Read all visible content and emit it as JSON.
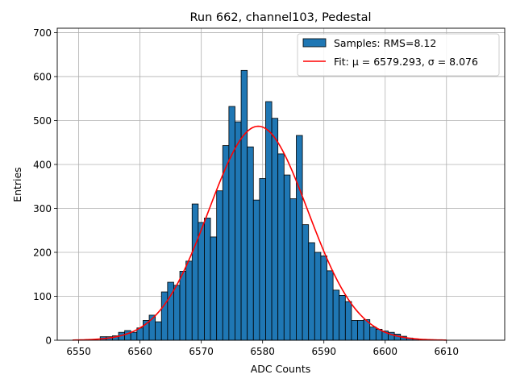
{
  "chart_data": {
    "type": "bar",
    "title": "Run 662, channel103, Pedestal",
    "xlabel": "ADC Counts",
    "ylabel": "Entries",
    "xlim": [
      6546.5,
      6619.5
    ],
    "ylim": [
      0,
      710
    ],
    "x_ticks": [
      6550,
      6560,
      6570,
      6580,
      6590,
      6600,
      6610
    ],
    "y_ticks": [
      0,
      100,
      200,
      300,
      400,
      500,
      600,
      700
    ],
    "grid": true,
    "legend_position": "top-right",
    "bin_width": 1,
    "bins": [
      {
        "x": 6554,
        "y": 8
      },
      {
        "x": 6555,
        "y": 8
      },
      {
        "x": 6556,
        "y": 10
      },
      {
        "x": 6557,
        "y": 18
      },
      {
        "x": 6558,
        "y": 22
      },
      {
        "x": 6559,
        "y": 18
      },
      {
        "x": 6560,
        "y": 28
      },
      {
        "x": 6561,
        "y": 45
      },
      {
        "x": 6562,
        "y": 57
      },
      {
        "x": 6563,
        "y": 42
      },
      {
        "x": 6564,
        "y": 110
      },
      {
        "x": 6565,
        "y": 132
      },
      {
        "x": 6566,
        "y": 125
      },
      {
        "x": 6567,
        "y": 157
      },
      {
        "x": 6568,
        "y": 180
      },
      {
        "x": 6569,
        "y": 310
      },
      {
        "x": 6570,
        "y": 268
      },
      {
        "x": 6571,
        "y": 278
      },
      {
        "x": 6572,
        "y": 235
      },
      {
        "x": 6573,
        "y": 340
      },
      {
        "x": 6574,
        "y": 443
      },
      {
        "x": 6575,
        "y": 532
      },
      {
        "x": 6576,
        "y": 497
      },
      {
        "x": 6577,
        "y": 614
      },
      {
        "x": 6578,
        "y": 440
      },
      {
        "x": 6579,
        "y": 319
      },
      {
        "x": 6580,
        "y": 368
      },
      {
        "x": 6581,
        "y": 543
      },
      {
        "x": 6582,
        "y": 505
      },
      {
        "x": 6583,
        "y": 424
      },
      {
        "x": 6584,
        "y": 376
      },
      {
        "x": 6585,
        "y": 322
      },
      {
        "x": 6586,
        "y": 466
      },
      {
        "x": 6587,
        "y": 263
      },
      {
        "x": 6588,
        "y": 222
      },
      {
        "x": 6589,
        "y": 200
      },
      {
        "x": 6590,
        "y": 192
      },
      {
        "x": 6591,
        "y": 158
      },
      {
        "x": 6592,
        "y": 114
      },
      {
        "x": 6593,
        "y": 102
      },
      {
        "x": 6594,
        "y": 88
      },
      {
        "x": 6595,
        "y": 45
      },
      {
        "x": 6596,
        "y": 45
      },
      {
        "x": 6597,
        "y": 47
      },
      {
        "x": 6598,
        "y": 30
      },
      {
        "x": 6599,
        "y": 25
      },
      {
        "x": 6600,
        "y": 21
      },
      {
        "x": 6601,
        "y": 18
      },
      {
        "x": 6602,
        "y": 14
      },
      {
        "x": 6603,
        "y": 9
      },
      {
        "x": 6604,
        "y": 5
      },
      {
        "x": 6605,
        "y": 3
      }
    ],
    "fit": {
      "type": "gaussian",
      "mu": 6579.293,
      "sigma": 8.076,
      "amplitude": 487,
      "x_range": [
        6549,
        6610
      ]
    },
    "series": [
      {
        "name": "Samples: RMS=8.12",
        "color": "#1f77b4",
        "edgecolor": "#000000"
      },
      {
        "name": "Fit: μ = 6579.293, σ = 8.076",
        "color": "#ff0000"
      }
    ]
  }
}
